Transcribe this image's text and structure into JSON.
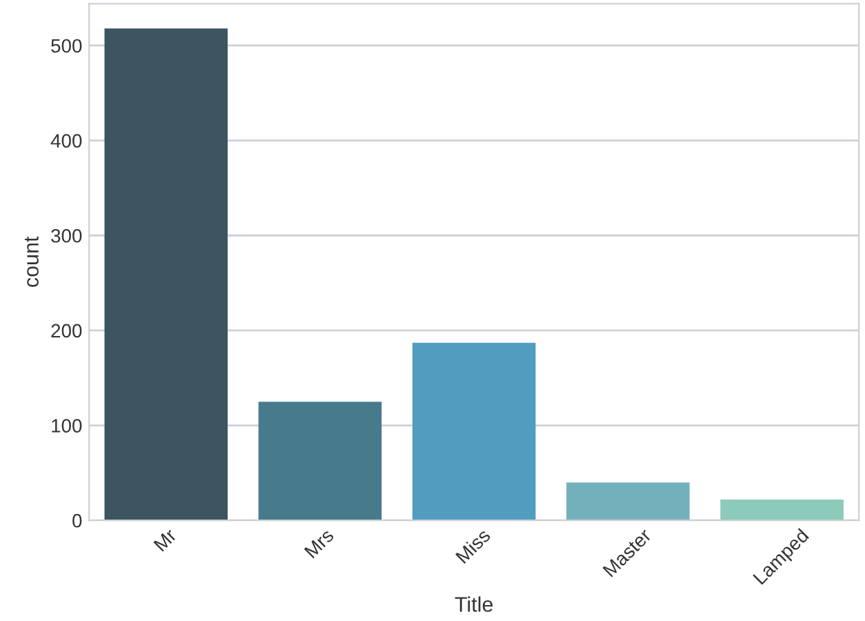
{
  "chart_data": {
    "type": "bar",
    "xlabel": "Title",
    "ylabel": "count",
    "categories": [
      "Mr",
      "Mrs",
      "Miss",
      "Master",
      "Lamped"
    ],
    "values": [
      518,
      125,
      187,
      40,
      22
    ],
    "colors": [
      "#3d5561",
      "#477b8c",
      "#509dbf",
      "#72b1bb",
      "#8ccab9"
    ],
    "ylim": [
      0,
      544
    ],
    "yticks": [
      0,
      100,
      200,
      300,
      400,
      500
    ],
    "grid": "y",
    "legend": false
  }
}
